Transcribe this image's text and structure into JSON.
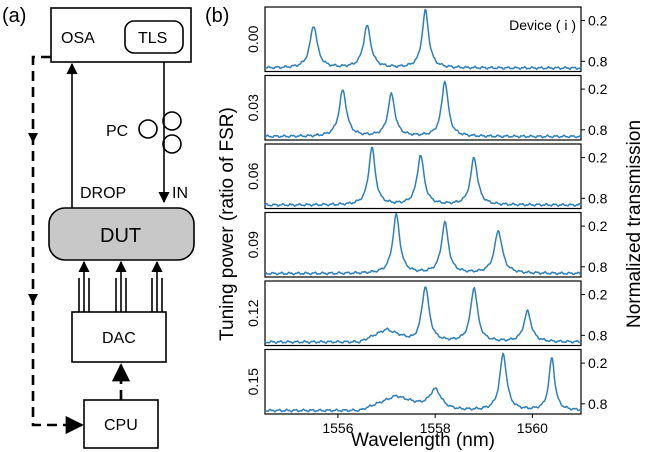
{
  "panel_a": {
    "label": "(a)",
    "osa": "OSA",
    "tls": "TLS",
    "pc": "PC",
    "drop": "DROP",
    "in": "IN",
    "dut": "DUT",
    "dac": "DAC",
    "cpu": "CPU"
  },
  "panel_b": {
    "label": "(b)",
    "annotation": "Device ( i )",
    "xlabel": "Wavelength (nm)",
    "ylabel_left": "Tuning power (ratio of FSR)",
    "ylabel_right": "Normalized transmission",
    "xticks": [
      "1556",
      "1558",
      "1560"
    ],
    "yticks": [
      "0.8",
      "0.2"
    ]
  },
  "colors": {
    "trace": "#2f7fb8",
    "dut_fill": "#c8c8c8"
  },
  "chart_data": {
    "type": "line",
    "xlabel": "Wavelength (nm)",
    "ylabel": "Normalized transmission",
    "xlim": [
      1554.5,
      1561.0
    ],
    "ylim": [
      0.05,
      1.0
    ],
    "y_tick_values": [
      0.2,
      0.8
    ],
    "x_tick_values": [
      1556,
      1558,
      1560
    ],
    "series": [
      {
        "name": "0.00",
        "peaks": [
          [
            1555.5,
            0.72,
            0.18
          ],
          [
            1556.6,
            0.72,
            0.18
          ],
          [
            1557.8,
            0.95,
            0.16
          ]
        ],
        "shoulder": null
      },
      {
        "name": "0.03",
        "peaks": [
          [
            1556.1,
            0.78,
            0.18
          ],
          [
            1557.1,
            0.72,
            0.17
          ],
          [
            1558.2,
            0.92,
            0.16
          ]
        ],
        "shoulder": null
      },
      {
        "name": "0.06",
        "peaks": [
          [
            1556.7,
            0.95,
            0.16
          ],
          [
            1557.7,
            0.83,
            0.17
          ],
          [
            1558.8,
            0.8,
            0.17
          ]
        ],
        "shoulder": null
      },
      {
        "name": "0.09",
        "peaks": [
          [
            1557.2,
            0.97,
            0.17
          ],
          [
            1558.2,
            0.85,
            0.17
          ],
          [
            1559.3,
            0.73,
            0.19
          ]
        ],
        "shoulder": null
      },
      {
        "name": "0.12",
        "peaks": [
          [
            1557.8,
            0.92,
            0.18
          ],
          [
            1558.8,
            0.9,
            0.17
          ],
          [
            1559.9,
            0.55,
            0.18
          ]
        ],
        "shoulder": [
          1557.0,
          0.3,
          0.55
        ]
      },
      {
        "name": "0.15",
        "peaks": [
          [
            1558.0,
            0.42,
            0.3
          ],
          [
            1559.4,
            0.93,
            0.17
          ],
          [
            1560.4,
            0.88,
            0.14
          ]
        ],
        "shoulder": [
          1557.2,
          0.35,
          0.75
        ]
      }
    ]
  }
}
